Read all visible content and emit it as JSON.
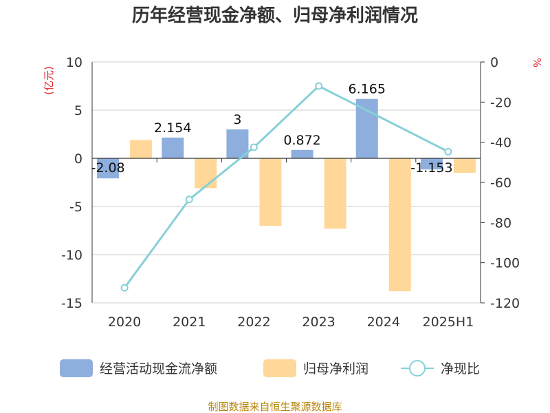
{
  "chart_data": {
    "type": "bar",
    "title": "历年经营现金净额、归母净利润情况",
    "categories": [
      "2020",
      "2021",
      "2022",
      "2023",
      "2024",
      "2025H1"
    ],
    "left_axis": {
      "unit": "(亿元)",
      "ylim": [
        -15,
        10
      ],
      "ticks": [
        10,
        5,
        0,
        -5,
        -10,
        -15
      ]
    },
    "right_axis": {
      "unit": "%",
      "ylim": [
        -120,
        0
      ],
      "ticks": [
        0,
        -20,
        -40,
        -60,
        -80,
        -100,
        -120
      ]
    },
    "series": [
      {
        "name": "经营活动现金流净额",
        "type": "bar",
        "axis": "left",
        "color": "#8eaedd",
        "values": [
          -2.08,
          2.154,
          3,
          0.872,
          6.165,
          -1.153
        ],
        "labels": [
          "-2.08",
          "2.154",
          "3",
          "0.872",
          "6.165",
          "-1.153"
        ]
      },
      {
        "name": "归母净利润",
        "type": "bar",
        "axis": "left",
        "color": "#ffd799",
        "values": [
          1.9,
          -3.1,
          -7.0,
          -7.3,
          -13.8,
          -1.5
        ]
      },
      {
        "name": "净现比",
        "type": "line",
        "axis": "right",
        "color": "#86d0d8",
        "values": [
          -112.5,
          -68.5,
          -42.5,
          -12.0,
          null,
          -44.7
        ]
      }
    ],
    "grid": true,
    "legend_position": "bottom"
  },
  "source": "制图数据来自恒生聚源数据库"
}
